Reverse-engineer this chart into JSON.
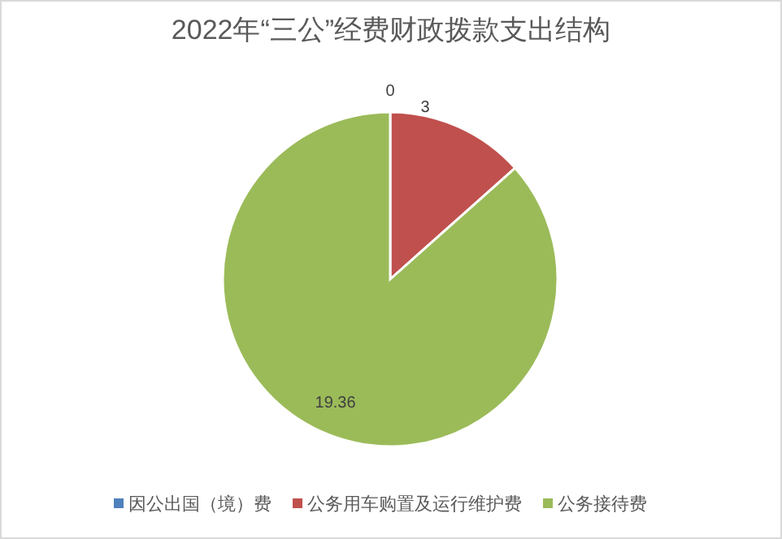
{
  "chart_data": {
    "type": "pie",
    "title": "2022年“三公”经费财政拨款支出结构",
    "categories": [
      "因公出国（境）费",
      "公务用车购置及运行维护费",
      "公务接待费"
    ],
    "values": [
      0,
      3,
      19.36
    ],
    "colors": [
      "#4f81bd",
      "#c0504d",
      "#9bbb59"
    ],
    "value_labels": [
      "0",
      "3",
      "19.36"
    ],
    "legend": "bottom"
  }
}
